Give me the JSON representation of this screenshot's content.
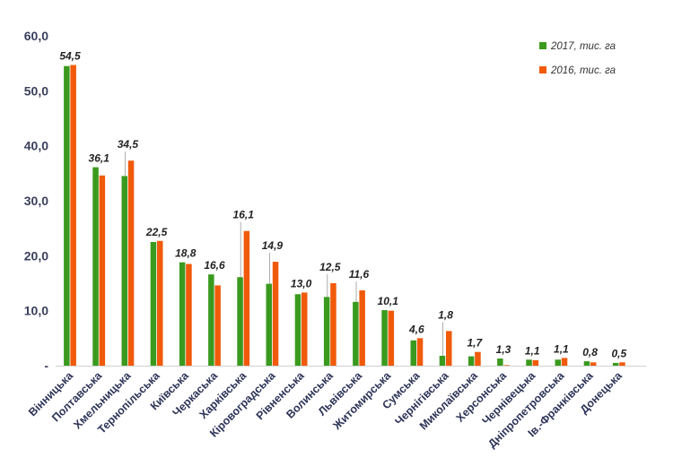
{
  "chart_data": {
    "type": "bar",
    "categories": [
      "Вінницька",
      "Полтавська",
      "Хмельницька",
      "Тернопільська",
      "Київська",
      "Черкаська",
      "Харківська",
      "Кіровоградська",
      "Рівненська",
      "Волинська",
      "Львівська",
      "Житомирська",
      "Сумська",
      "Чернігівська",
      "Миколаївська",
      "Херсонська",
      "Чернівецька",
      "Дніпропетровська",
      "Ів.-Франківська",
      "Донецька"
    ],
    "series": [
      {
        "name": "2017, тис. га",
        "color": "#3a9a1e",
        "values": [
          54.5,
          36.1,
          34.5,
          22.5,
          18.8,
          16.6,
          16.1,
          14.9,
          13.0,
          12.5,
          11.6,
          10.1,
          4.6,
          1.8,
          1.7,
          1.3,
          1.1,
          1.1,
          0.8,
          0.5
        ]
      },
      {
        "name": "2016, тис. га",
        "color": "#f05a0a",
        "values": [
          54.7,
          34.6,
          37.3,
          22.7,
          18.5,
          14.6,
          24.5,
          18.9,
          13.3,
          15.0,
          13.7,
          10.0,
          5.0,
          6.3,
          2.5,
          0.1,
          1.0,
          1.4,
          0.6,
          0.6
        ]
      }
    ],
    "data_labels": [
      "54,5",
      "36,1",
      "34,5",
      "22,5",
      "18,8",
      "16,6",
      "16,1",
      "14,9",
      "13,0",
      "12,5",
      "11,6",
      "10,1",
      "4,6",
      "1,8",
      "1,7",
      "1,3",
      "1,1",
      "1,1",
      "0,8",
      "0,5"
    ],
    "y_ticks": [
      {
        "value": 0,
        "label": "-"
      },
      {
        "value": 10,
        "label": "10,0"
      },
      {
        "value": 20,
        "label": "20,0"
      },
      {
        "value": 30,
        "label": "30,0"
      },
      {
        "value": 40,
        "label": "40,0"
      },
      {
        "value": 50,
        "label": "50,0"
      },
      {
        "value": 60,
        "label": "60,0"
      }
    ],
    "ylim": [
      0,
      60
    ],
    "title": "",
    "xlabel": "",
    "ylabel": "",
    "grid": false,
    "legend_position": "top-right"
  }
}
